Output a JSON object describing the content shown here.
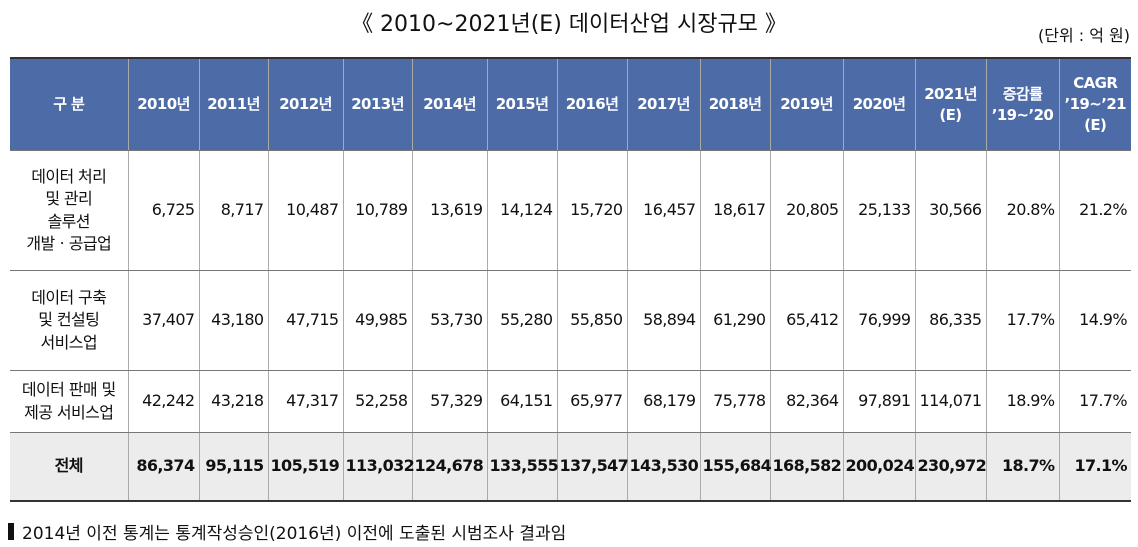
{
  "title": "《 2010~2021년(E) 데이터산업 시장규모 》",
  "unit": "(단위 : 억 원)",
  "table": {
    "header": [
      "구 분",
      "2010년",
      "2011년",
      "2012년",
      "2013년",
      "2014년",
      "2015년",
      "2016년",
      "2017년",
      "2018년",
      "2019년",
      "2020년",
      "2021년\n(E)",
      "증감률\n’19~’20",
      "CAGR\n’19~’21\n(E)"
    ],
    "rows": [
      [
        "데이터 처리\n및 관리\n솔루션\n개발ㆍ공급업",
        "6,725",
        "8,717",
        "10,487",
        "10,789",
        "13,619",
        "14,124",
        "15,720",
        "16,457",
        "18,617",
        "20,805",
        "25,133",
        "30,566",
        "20.8%",
        "21.2%"
      ],
      [
        "데이터 구축\n및 컨설팅\n서비스업",
        "37,407",
        "43,180",
        "47,715",
        "49,985",
        "53,730",
        "55,280",
        "55,850",
        "58,894",
        "61,290",
        "65,412",
        "76,999",
        "86,335",
        "17.7%",
        "14.9%"
      ],
      [
        "데이터 판매 및\n제공 서비스업",
        "42,242",
        "43,218",
        "47,317",
        "52,258",
        "57,329",
        "64,151",
        "65,977",
        "68,179",
        "75,778",
        "82,364",
        "97,891",
        "114,071",
        "18.9%",
        "17.7%"
      ],
      [
        "전체",
        "86,374",
        "95,115",
        "105,519",
        "113,032",
        "124,678",
        "133,555",
        "137,547",
        "143,530",
        "155,684",
        "168,582",
        "200,024",
        "230,972",
        "18.7%",
        "17.1%"
      ]
    ]
  },
  "footnote": "2014년 이전 통계는 통계작성승인(2016년) 이전에 도출된 시범조사 결과임"
}
